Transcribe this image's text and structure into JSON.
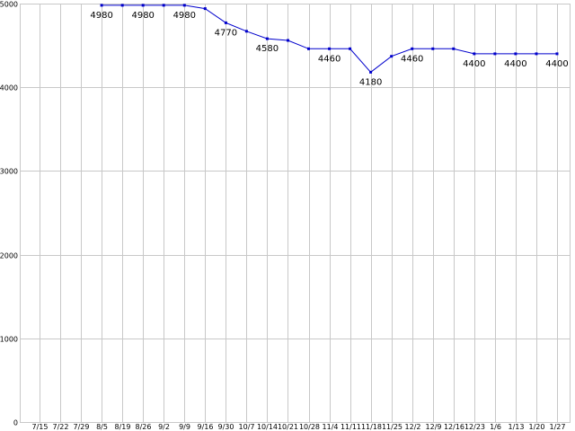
{
  "chart_data": {
    "type": "line",
    "title": "",
    "xlabel": "",
    "ylabel": "",
    "ylim": [
      0,
      5000
    ],
    "yticks": [
      0,
      1000,
      2000,
      3000,
      4000,
      5000
    ],
    "grid": true,
    "legend": "none",
    "colors": {
      "line": "#0000cc",
      "grid": "#c8c8c8",
      "background": "#ffffff"
    },
    "categories": [
      "7/15",
      "7/22",
      "7/29",
      "8/5",
      "8/19",
      "8/26",
      "9/2",
      "9/9",
      "9/16",
      "9/30",
      "10/7",
      "10/14",
      "10/21",
      "10/28",
      "11/4",
      "11/11",
      "11/18",
      "11/25",
      "12/2",
      "12/9",
      "12/16",
      "12/23",
      "1/6",
      "1/13",
      "1/20",
      "1/27"
    ],
    "series": [
      {
        "values": [
          null,
          null,
          null,
          4980,
          4980,
          4980,
          4980,
          4980,
          4940,
          4770,
          4670,
          4580,
          4560,
          4460,
          4460,
          4460,
          4180,
          4370,
          4460,
          4460,
          4460,
          4400,
          4400,
          4400,
          4400,
          4400
        ],
        "labels": [
          "",
          "",
          "",
          "4980",
          "",
          "4980",
          "",
          "4980",
          "",
          "4770",
          "",
          "4580",
          "",
          "",
          "4460",
          "",
          "4180",
          "",
          "4460",
          "",
          "",
          "4400",
          "",
          "4400",
          "",
          "4400"
        ]
      }
    ]
  }
}
